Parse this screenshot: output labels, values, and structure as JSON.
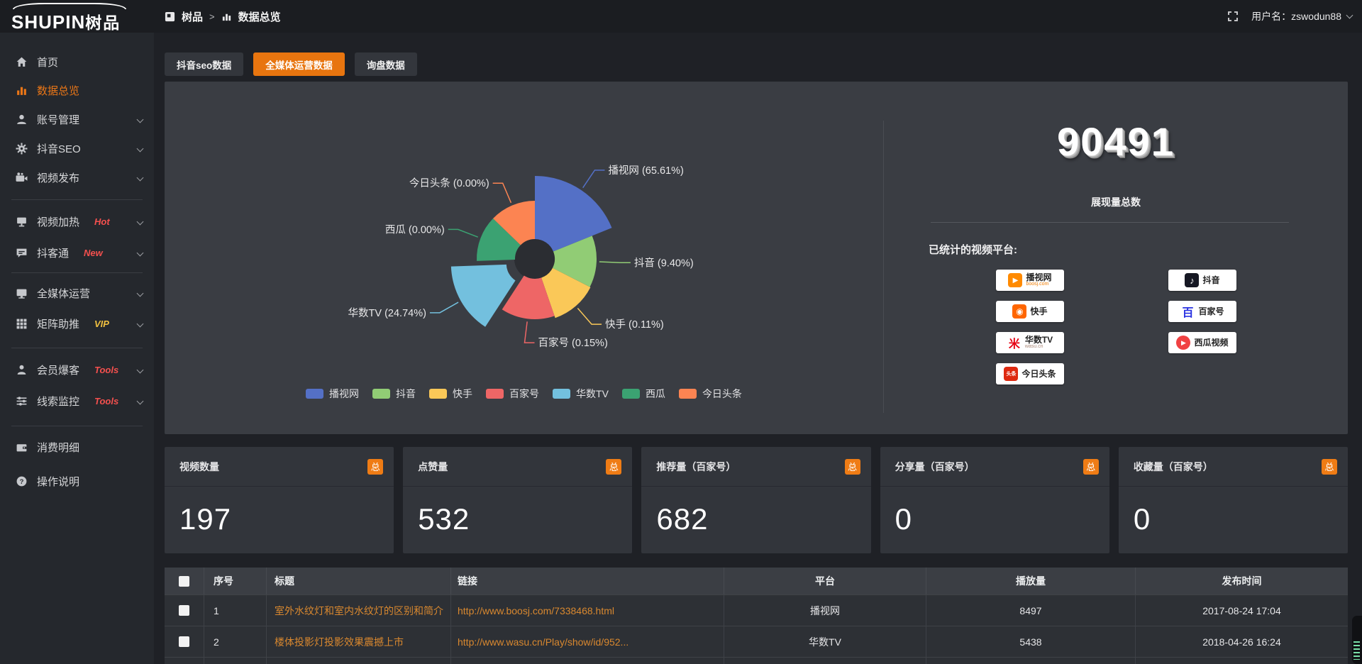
{
  "topbar": {
    "logo_text": "SHUPIN",
    "logo_cn": "树品",
    "breadcrumb": [
      "树品",
      "数据总览"
    ],
    "breadcrumb_sep": ">",
    "username": "用户名：zswodun88"
  },
  "sidebar": {
    "items": [
      {
        "label": "首页",
        "icon": "home-icon"
      },
      {
        "label": "数据总览",
        "icon": "bar-chart-icon",
        "active": true
      },
      {
        "label": "账号管理",
        "icon": "user-icon",
        "chevron": true
      },
      {
        "label": "抖音SEO",
        "icon": "gear-icon",
        "chevron": true
      },
      {
        "label": "视频发布",
        "icon": "publish-icon",
        "chevron": true
      },
      {
        "label": "视频加热",
        "icon": "screen-icon",
        "tag": "Hot",
        "tag_color": "#f4504e",
        "chevron": true
      },
      {
        "label": "抖客通",
        "icon": "chat-icon",
        "tag": "New",
        "tag_color": "#f4504e",
        "chevron": true
      },
      {
        "label": "全媒体运营",
        "icon": "monitor-icon",
        "chevron": true
      },
      {
        "label": "矩阵助推",
        "icon": "grid-icon",
        "tag": "VIP",
        "tag_color": "#f0c040",
        "chevron": true
      },
      {
        "label": "会员爆客",
        "icon": "member-icon",
        "tag": "Tools",
        "tag_color": "#f4504e",
        "chevron": true
      },
      {
        "label": "线索监控",
        "icon": "sliders-icon",
        "tag": "Tools",
        "tag_color": "#f4504e",
        "chevron": true
      },
      {
        "label": "消费明细",
        "icon": "wallet-icon"
      },
      {
        "label": "操作说明",
        "icon": "help-icon"
      }
    ]
  },
  "tabs": [
    {
      "label": "抖音seo数据",
      "active": false
    },
    {
      "label": "全媒体运营数据",
      "active": true
    },
    {
      "label": "询盘数据",
      "active": false
    }
  ],
  "theme": {
    "accent_orange": "#e8750f",
    "active_menu_orange": "#ea7617",
    "link_orange": "#d9882f",
    "panel_bg": "#3a3d43",
    "sidebar_bg": "#25282d",
    "topbar_bg": "#1b1d21"
  },
  "chart_data": {
    "type": "pie",
    "style": "rose",
    "legend_position": "bottom",
    "inner_radius": 28,
    "label_format": "{name} ({value}%)",
    "series": [
      {
        "name": "播视网",
        "value": 65.61,
        "color": "#5470C6",
        "start": 0,
        "end": 68,
        "radius": 117
      },
      {
        "name": "抖音",
        "value": 9.4,
        "color": "#91CC75",
        "start": 68,
        "end": 117,
        "radius": 87
      },
      {
        "name": "快手",
        "value": 0.11,
        "color": "#FAC858",
        "start": 117,
        "end": 161,
        "radius": 88
      },
      {
        "name": "百家号",
        "value": 0.15,
        "color": "#EE6666",
        "start": 161,
        "end": 213,
        "radius": 85
      },
      {
        "name": "华数TV",
        "value": 24.74,
        "color": "#73C0DE",
        "start": 213,
        "end": 268,
        "radius": 106,
        "offset": 14
      },
      {
        "name": "西瓜",
        "value": 0.0,
        "color": "#3BA272",
        "start": 268,
        "end": 314,
        "radius": 82
      },
      {
        "name": "今日头条",
        "value": 0.0,
        "color": "#FC8452",
        "start": 314,
        "end": 360,
        "radius": 82
      }
    ]
  },
  "overview": {
    "total_value": "90491",
    "total_label": "展现量总数",
    "platforms_label": "已统计的视频平台:",
    "platforms": [
      {
        "name": "播视网",
        "sub": "boosj.com",
        "logo": "boosj-logo-icon"
      },
      {
        "name": "快手",
        "logo": "kuaishou-logo-icon"
      },
      {
        "name": "华数TV",
        "sub": "wasu.cn",
        "logo": "wasu-logo-icon"
      },
      {
        "name": "今日头条",
        "logo": "toutiao-logo-icon"
      },
      {
        "name": "抖音",
        "logo": "douyin-logo-icon"
      },
      {
        "name": "百家号",
        "logo": "baijiahao-logo-icon"
      },
      {
        "name": "西瓜视频",
        "logo": "xigua-logo-icon"
      }
    ]
  },
  "stat_cards": [
    {
      "label": "视频数量",
      "badge": "总",
      "value": "197"
    },
    {
      "label": "点赞量",
      "badge": "总",
      "value": "532"
    },
    {
      "label": "推荐量（百家号）",
      "badge": "总",
      "value": "682"
    },
    {
      "label": "分享量（百家号）",
      "badge": "总",
      "value": "0"
    },
    {
      "label": "收藏量（百家号）",
      "badge": "总",
      "value": "0"
    }
  ],
  "table": {
    "headers": [
      "序号",
      "标题",
      "链接",
      "平台",
      "播放量",
      "发布时间"
    ],
    "rows": [
      {
        "no": "1",
        "title": "室外水纹灯和室内水纹灯的区别和简介",
        "link": "http://www.boosj.com/7338468.html",
        "platform": "播视网",
        "plays": "8497",
        "time": "2017-08-24 17:04"
      },
      {
        "no": "2",
        "title": "楼体投影灯投影效果震撼上市",
        "link": "http://www.wasu.cn/Play/show/id/952...",
        "platform": "华数TV",
        "plays": "5438",
        "time": "2018-04-26 16:24"
      }
    ]
  }
}
